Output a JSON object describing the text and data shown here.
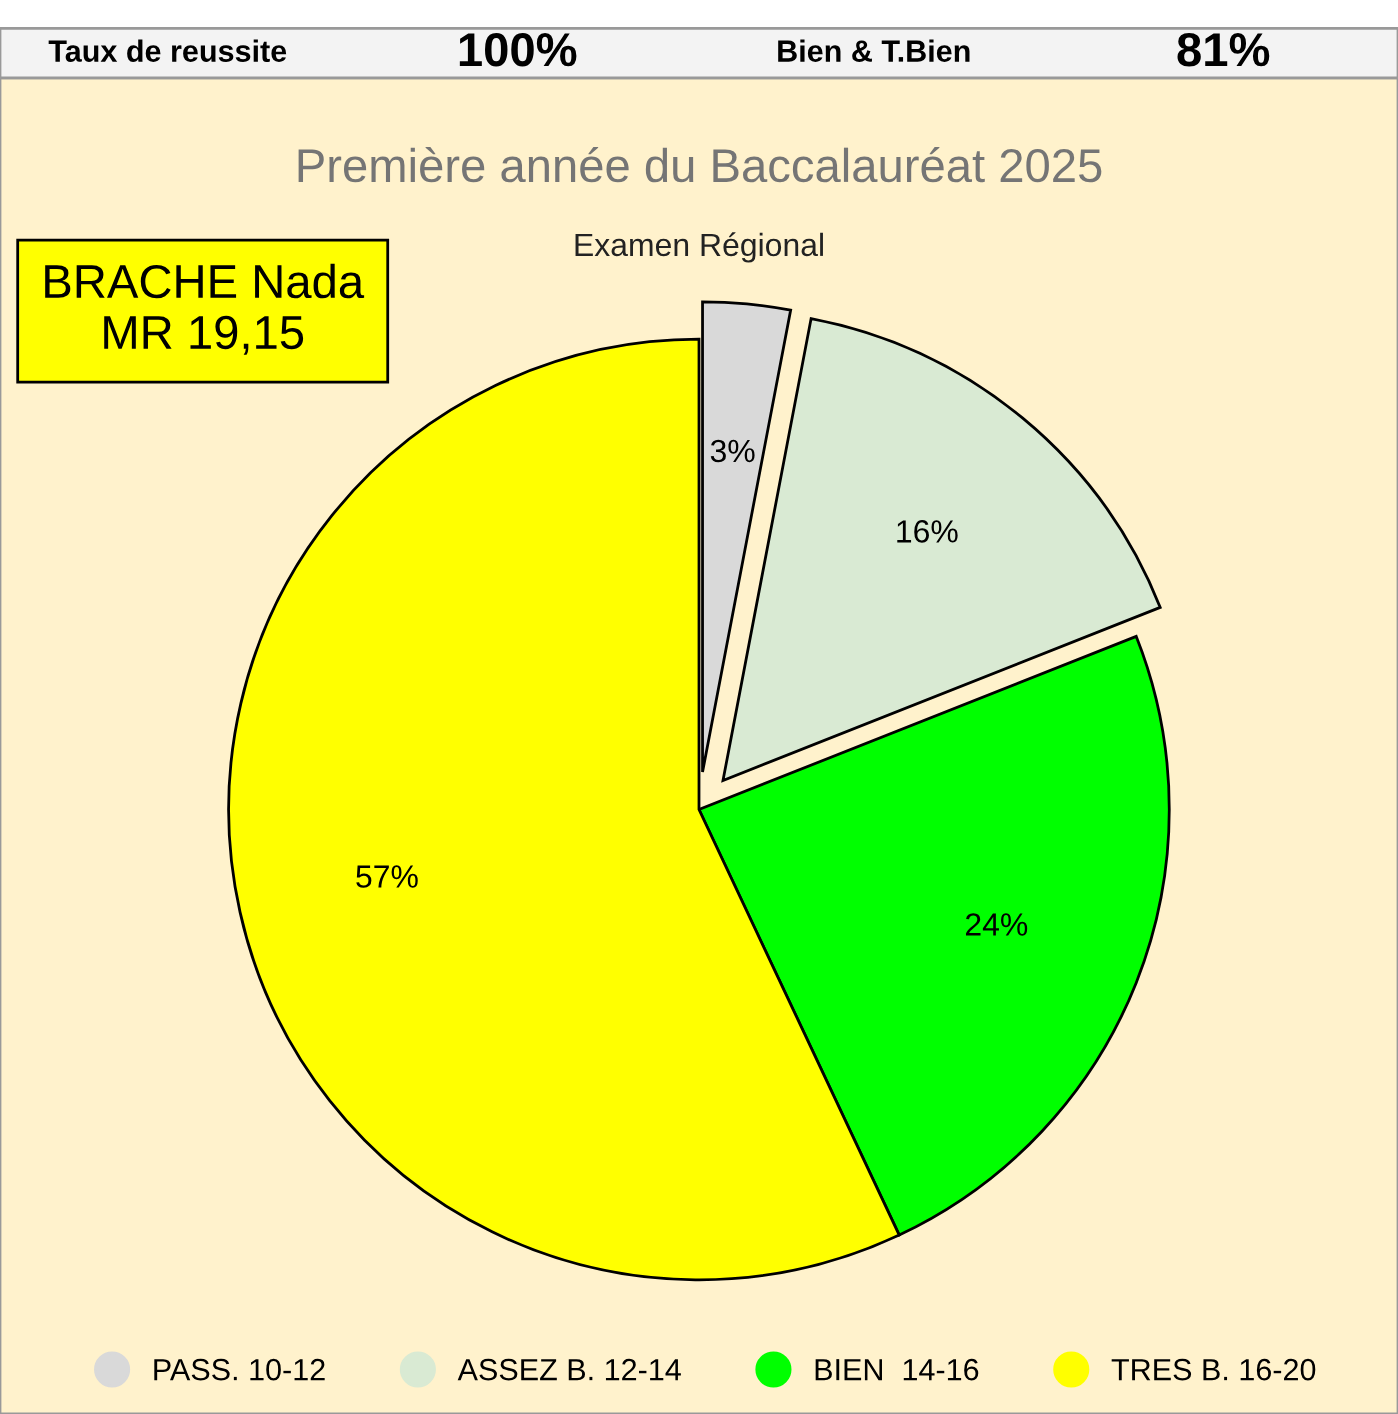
{
  "chart_data": {
    "type": "pie",
    "title": "Première année du Baccalauréat 2025",
    "subtitle": "Examen Régional",
    "categories": [
      "PASS. 10-12",
      "ASSEZ B. 12-14",
      "BIEN  14-16",
      "TRES B. 16-20"
    ],
    "values": [
      3,
      16,
      24,
      57
    ],
    "colors": [
      "#d9d9d9",
      "#d9ead3",
      "#00ff00",
      "#ffff00"
    ],
    "value_labels": [
      "3%",
      "16%",
      "24%",
      "57%"
    ],
    "legend": "bottom",
    "annotations": [
      "Taux de reussite",
      "100%",
      "Bien & T.Bien",
      "81%",
      "BRACHE Nada\nMR 19,15"
    ]
  }
}
